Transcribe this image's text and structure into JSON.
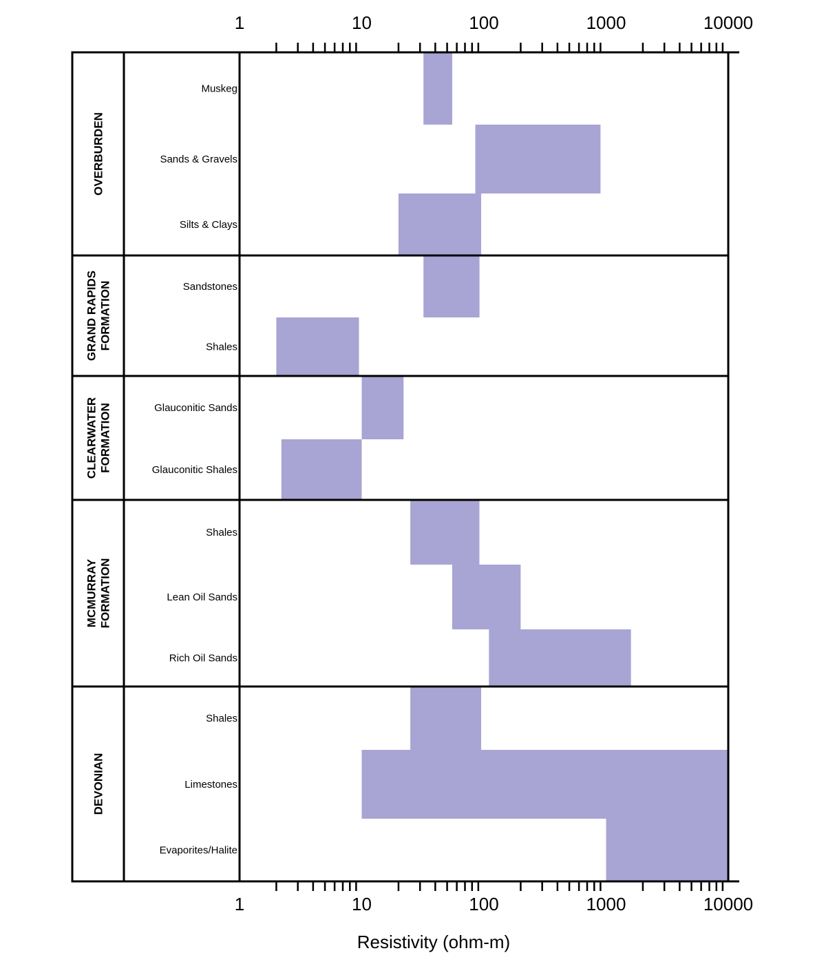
{
  "chart_data": {
    "type": "bar",
    "orientation": "horizontal-range",
    "title": "",
    "xlabel": "Resistivity (ohm-m)",
    "xscale": "log",
    "xlim": [
      1,
      10000
    ],
    "x_ticks": [
      "1",
      "10",
      "100",
      "1000",
      "10000"
    ],
    "bar_color": "#a8a5d4",
    "groups": [
      {
        "name": "OVERBURDEN",
        "name_lines": [
          "OVERBURDEN"
        ],
        "rows": [
          {
            "label": "Muskeg",
            "range": [
              32,
              55
            ]
          },
          {
            "label": "Sands & Gravels",
            "range": [
              85,
              900
            ]
          },
          {
            "label": "Silts & Clays",
            "range": [
              20,
              95
            ]
          }
        ]
      },
      {
        "name": "GRAND RAPIDS FORMATION",
        "name_lines": [
          "GRAND RAPIDS",
          "FORMATION"
        ],
        "rows": [
          {
            "label": "Sandstones",
            "range": [
              32,
              92
            ]
          },
          {
            "label": "Shales",
            "range": [
              2,
              9.5
            ]
          }
        ]
      },
      {
        "name": "CLEARWATER FORMATION",
        "name_lines": [
          "CLEARWATER",
          "FORMATION"
        ],
        "rows": [
          {
            "label": "Glauconitic Sands",
            "range": [
              10,
              22
            ]
          },
          {
            "label": "Glauconitic Shales",
            "range": [
              2.2,
              10
            ]
          }
        ]
      },
      {
        "name": "MCMURRAY FORMATION",
        "name_lines": [
          "MCMURRAY",
          "FORMATION"
        ],
        "rows": [
          {
            "label": "Shales",
            "range": [
              25,
              92
            ]
          },
          {
            "label": "Lean Oil Sands",
            "range": [
              55,
              200
            ]
          },
          {
            "label": "Rich Oil Sands",
            "range": [
              110,
              1600
            ]
          }
        ]
      },
      {
        "name": "DEVONIAN",
        "name_lines": [
          "DEVONIAN"
        ],
        "rows": [
          {
            "label": "Shales",
            "range": [
              25,
              95
            ]
          },
          {
            "label": "Limestones",
            "range": [
              10,
              10000
            ]
          },
          {
            "label": "Evaporites/Halite",
            "range": [
              1000,
              10000
            ]
          }
        ]
      }
    ]
  }
}
